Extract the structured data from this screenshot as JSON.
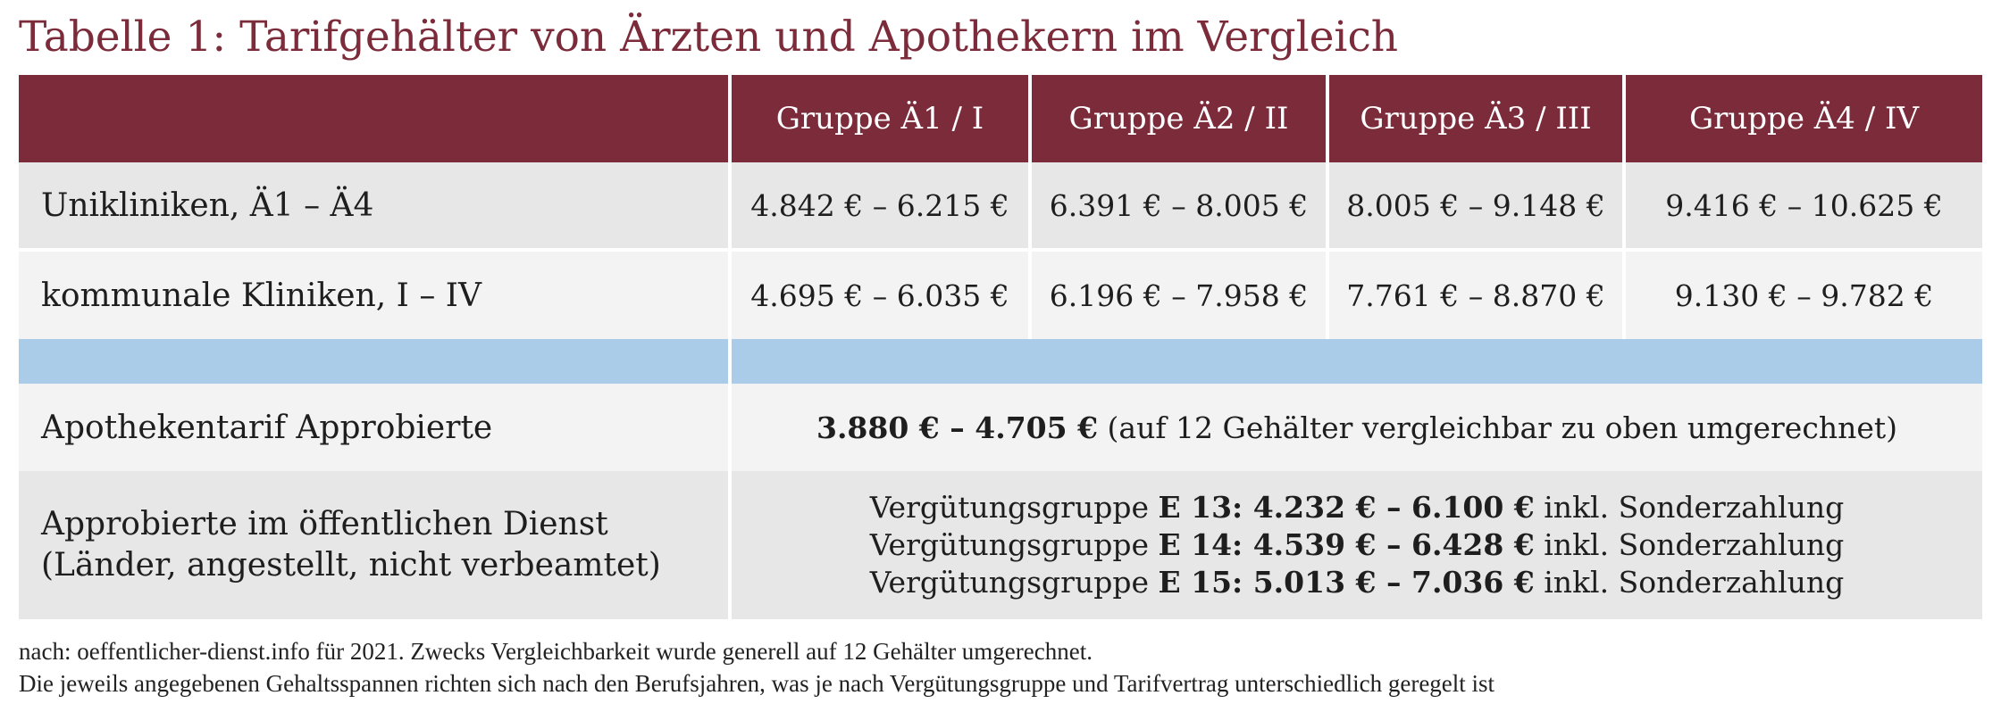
{
  "title": "Tabelle 1: Tarifgehälter von Ärzten und Apothekern im Vergleich",
  "header": {
    "col0": "",
    "col1": "Gruppe Ä1 / I",
    "col2": "Gruppe Ä2 / II",
    "col3": "Gruppe Ä3 / III",
    "col4": "Gruppe Ä4 / IV"
  },
  "rows": [
    {
      "label": "Unikliniken, Ä1 – Ä4",
      "values": [
        "4.842 € – 6.215 €",
        "6.391 € – 8.005 €",
        "8.005 € – 9.148 €",
        "9.416 € – 10.625 €"
      ]
    },
    {
      "label": "kommunale Kliniken, I – IV",
      "values": [
        "4.695 € – 6.035 €",
        "6.196 € – 7.958 €",
        "7.761 € – 8.870 €",
        "9.130 € – 9.782 €"
      ]
    }
  ],
  "apotheke": {
    "label": "Apothekentarif Approbierte",
    "value_bold": "3.880 € – 4.705 €",
    "value_rest": " (auf 12 Gehälter vergleichbar zu oben umgerechnet)"
  },
  "oeffentlich": {
    "label_line1": "Approbierte im öffentlichen Dienst",
    "label_line2": "(Länder, angestellt, nicht verbeamtet)",
    "lines": [
      {
        "prefix": "Vergütungsgruppe ",
        "group": "E 13",
        "range": ": 4.232 € – 6.100 €",
        "suffix": " inkl. Sonderzahlung"
      },
      {
        "prefix": "Vergütungsgruppe ",
        "group": "E 14",
        "range": ": 4.539 € – 6.428 €",
        "suffix": " inkl. Sonderzahlung"
      },
      {
        "prefix": "Vergütungsgruppe ",
        "group": "E 15",
        "range": ": 5.013 € – 7.036 €",
        "suffix": " inkl. Sonderzahlung"
      }
    ]
  },
  "footnote": {
    "line1": "nach: oeffentlicher-dienst.info für 2021. Zwecks Vergleichbarkeit wurde generell auf 12 Gehälter umgerechnet.",
    "line2": "Die jeweils angegebenen Gehaltsspannen richten sich nach den Berufsjahren, was je nach Vergütungsgruppe und Tarifvertrag unterschiedlich geregelt ist"
  },
  "colors": {
    "header_bg": "#7b2b3a",
    "title": "#7b2b3a",
    "separator_row": "#aacce8",
    "row_dark": "#e7e7e7",
    "row_light": "#f3f3f3"
  }
}
